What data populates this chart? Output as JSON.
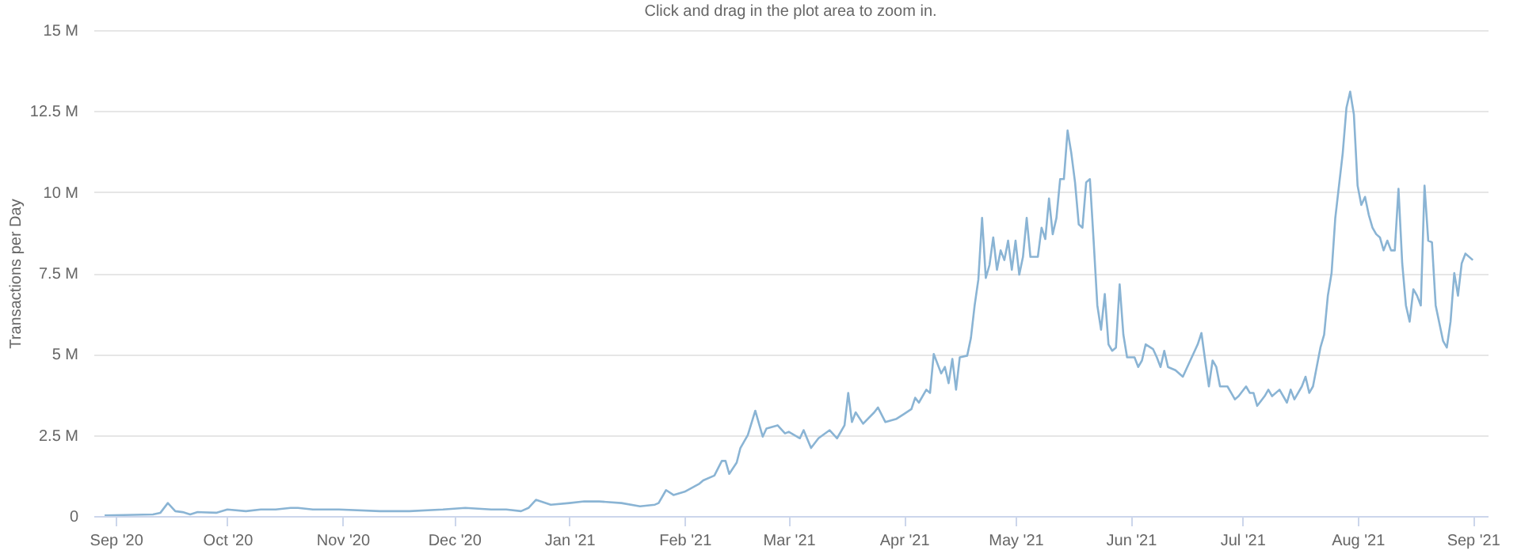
{
  "chart_data": {
    "type": "line",
    "subtitle": "Click and drag in the plot area to zoom in.",
    "ylabel": "Transactions per Day",
    "x": [
      "2020-08-29",
      "2020-09-11",
      "2020-09-13",
      "2020-09-15",
      "2020-09-17",
      "2020-09-19",
      "2020-09-21",
      "2020-09-23",
      "2020-09-28",
      "2020-10-01",
      "2020-10-06",
      "2020-10-10",
      "2020-10-14",
      "2020-10-18",
      "2020-10-20",
      "2020-10-24",
      "2020-10-31",
      "2020-11-11",
      "2020-11-19",
      "2020-11-28",
      "2020-12-04",
      "2020-12-11",
      "2020-12-15",
      "2020-12-19",
      "2020-12-21",
      "2020-12-23",
      "2020-12-27",
      "2021-01-01",
      "2021-01-05",
      "2021-01-09",
      "2021-01-15",
      "2021-01-20",
      "2021-01-24",
      "2021-01-25",
      "2021-01-27",
      "2021-01-29",
      "2021-02-01",
      "2021-02-05",
      "2021-02-06",
      "2021-02-09",
      "2021-02-11",
      "2021-02-12",
      "2021-02-13",
      "2021-02-15",
      "2021-02-16",
      "2021-02-18",
      "2021-02-20",
      "2021-02-21",
      "2021-02-22",
      "2021-02-23",
      "2021-02-26",
      "2021-02-28",
      "2021-03-01",
      "2021-03-04",
      "2021-03-05",
      "2021-03-07",
      "2021-03-09",
      "2021-03-12",
      "2021-03-14",
      "2021-03-16",
      "2021-03-17",
      "2021-03-18",
      "2021-03-19",
      "2021-03-21",
      "2021-03-24",
      "2021-03-25",
      "2021-03-27",
      "2021-03-30",
      "2021-04-01",
      "2021-04-03",
      "2021-04-04",
      "2021-04-05",
      "2021-04-07",
      "2021-04-08",
      "2021-04-09",
      "2021-04-11",
      "2021-04-12",
      "2021-04-13",
      "2021-04-14",
      "2021-04-15",
      "2021-04-16",
      "2021-04-18",
      "2021-04-19",
      "2021-04-20",
      "2021-04-21",
      "2021-04-22",
      "2021-04-23",
      "2021-04-24",
      "2021-04-25",
      "2021-04-26",
      "2021-04-27",
      "2021-04-28",
      "2021-04-29",
      "2021-04-30",
      "2021-05-01",
      "2021-05-02",
      "2021-05-03",
      "2021-05-04",
      "2021-05-05",
      "2021-05-07",
      "2021-05-08",
      "2021-05-09",
      "2021-05-10",
      "2021-05-11",
      "2021-05-12",
      "2021-05-13",
      "2021-05-14",
      "2021-05-15",
      "2021-05-16",
      "2021-05-17",
      "2021-05-18",
      "2021-05-19",
      "2021-05-20",
      "2021-05-21",
      "2021-05-22",
      "2021-05-23",
      "2021-05-24",
      "2021-05-25",
      "2021-05-26",
      "2021-05-27",
      "2021-05-28",
      "2021-05-29",
      "2021-05-30",
      "2021-05-31",
      "2021-06-02",
      "2021-06-03",
      "2021-06-04",
      "2021-06-05",
      "2021-06-07",
      "2021-06-08",
      "2021-06-09",
      "2021-06-10",
      "2021-06-11",
      "2021-06-13",
      "2021-06-15",
      "2021-06-17",
      "2021-06-19",
      "2021-06-20",
      "2021-06-21",
      "2021-06-22",
      "2021-06-23",
      "2021-06-24",
      "2021-06-25",
      "2021-06-27",
      "2021-06-28",
      "2021-06-29",
      "2021-06-30",
      "2021-07-02",
      "2021-07-03",
      "2021-07-04",
      "2021-07-05",
      "2021-07-07",
      "2021-07-08",
      "2021-07-09",
      "2021-07-11",
      "2021-07-13",
      "2021-07-14",
      "2021-07-15",
      "2021-07-17",
      "2021-07-18",
      "2021-07-19",
      "2021-07-20",
      "2021-07-21",
      "2021-07-22",
      "2021-07-23",
      "2021-07-24",
      "2021-07-25",
      "2021-07-26",
      "2021-07-28",
      "2021-07-29",
      "2021-07-30",
      "2021-07-31",
      "2021-08-01",
      "2021-08-02",
      "2021-08-03",
      "2021-08-04",
      "2021-08-05",
      "2021-08-06",
      "2021-08-07",
      "2021-08-08",
      "2021-08-09",
      "2021-08-10",
      "2021-08-11",
      "2021-08-12",
      "2021-08-13",
      "2021-08-14",
      "2021-08-15",
      "2021-08-16",
      "2021-08-17",
      "2021-08-18",
      "2021-08-19",
      "2021-08-20",
      "2021-08-21",
      "2021-08-22",
      "2021-08-24",
      "2021-08-25",
      "2021-08-26",
      "2021-08-27",
      "2021-08-28",
      "2021-08-29",
      "2021-08-30",
      "2021-09-01"
    ],
    "series": [
      {
        "color": "#8ab4d4",
        "values": [
          0.02,
          0.05,
          0.1,
          0.4,
          0.15,
          0.12,
          0.05,
          0.12,
          0.1,
          0.2,
          0.15,
          0.2,
          0.2,
          0.25,
          0.25,
          0.2,
          0.2,
          0.15,
          0.15,
          0.2,
          0.25,
          0.2,
          0.2,
          0.15,
          0.25,
          0.5,
          0.35,
          0.4,
          0.45,
          0.45,
          0.4,
          0.3,
          0.35,
          0.4,
          0.8,
          0.65,
          0.75,
          1.0,
          1.1,
          1.25,
          1.7,
          1.7,
          1.3,
          1.65,
          2.1,
          2.5,
          3.25,
          2.85,
          2.45,
          2.7,
          2.8,
          2.55,
          2.6,
          2.4,
          2.65,
          2.1,
          2.4,
          2.65,
          2.4,
          2.8,
          3.8,
          2.9,
          3.2,
          2.85,
          3.2,
          3.35,
          2.9,
          3.0,
          3.15,
          3.3,
          3.65,
          3.5,
          3.9,
          3.8,
          5.0,
          4.4,
          4.6,
          4.1,
          4.85,
          3.9,
          4.9,
          4.95,
          5.5,
          6.5,
          7.3,
          9.2,
          7.35,
          7.75,
          8.6,
          7.6,
          8.2,
          7.9,
          8.5,
          7.6,
          8.5,
          7.45,
          8.0,
          9.2,
          8.0,
          8.0,
          8.9,
          8.55,
          9.8,
          8.7,
          9.2,
          10.4,
          10.4,
          11.9,
          11.2,
          10.3,
          9.0,
          8.9,
          10.3,
          10.4,
          8.5,
          6.5,
          5.75,
          6.85,
          5.3,
          5.1,
          5.2,
          7.15,
          5.6,
          4.9,
          4.9,
          4.6,
          4.8,
          5.3,
          5.15,
          4.9,
          4.6,
          5.1,
          4.6,
          4.5,
          4.3,
          4.8,
          5.3,
          5.65,
          4.8,
          4.0,
          4.8,
          4.6,
          4.0,
          4.0,
          3.8,
          3.6,
          3.7,
          4.0,
          3.8,
          3.8,
          3.4,
          3.7,
          3.9,
          3.7,
          3.9,
          3.5,
          3.9,
          3.6,
          4.0,
          4.3,
          3.8,
          4.0,
          4.6,
          5.2,
          5.6,
          6.8,
          7.5,
          9.2,
          11.2,
          12.6,
          13.1,
          12.4,
          10.2,
          9.6,
          9.85,
          9.3,
          8.9,
          8.7,
          8.6,
          8.2,
          8.5,
          8.2,
          8.2,
          10.1,
          7.8,
          6.5,
          6.0,
          7.0,
          6.8,
          6.5,
          10.2,
          8.5,
          8.45,
          6.5,
          5.4,
          5.2,
          6.0,
          7.5,
          6.8,
          7.8,
          8.1,
          7.9
        ]
      }
    ],
    "xlim": [
      "2020-08-26",
      "2021-09-05"
    ],
    "xticks": [
      {
        "value": "2020-09-01",
        "label": "Sep '20"
      },
      {
        "value": "2020-10-01",
        "label": "Oct '20"
      },
      {
        "value": "2020-11-01",
        "label": "Nov '20"
      },
      {
        "value": "2020-12-01",
        "label": "Dec '20"
      },
      {
        "value": "2021-01-01",
        "label": "Jan '21"
      },
      {
        "value": "2021-02-01",
        "label": "Feb '21"
      },
      {
        "value": "2021-03-01",
        "label": "Mar '21"
      },
      {
        "value": "2021-04-01",
        "label": "Apr '21"
      },
      {
        "value": "2021-05-01",
        "label": "May '21"
      },
      {
        "value": "2021-06-01",
        "label": "Jun '21"
      },
      {
        "value": "2021-07-01",
        "label": "Jul '21"
      },
      {
        "value": "2021-08-01",
        "label": "Aug '21"
      },
      {
        "value": "2021-09-01",
        "label": "Sep '21"
      }
    ],
    "ylim": [
      0,
      15
    ],
    "yticks": [
      0,
      {
        "value": 2.5,
        "label": "2.5 M"
      },
      {
        "value": 5,
        "label": "5 M"
      },
      {
        "value": 7.5,
        "label": "7.5 M"
      },
      {
        "value": 10,
        "label": "10 M"
      },
      {
        "value": 12.5,
        "label": "12.5 M"
      },
      {
        "value": 15,
        "label": "15 M"
      }
    ],
    "grid": "y",
    "line_style": "solid"
  }
}
